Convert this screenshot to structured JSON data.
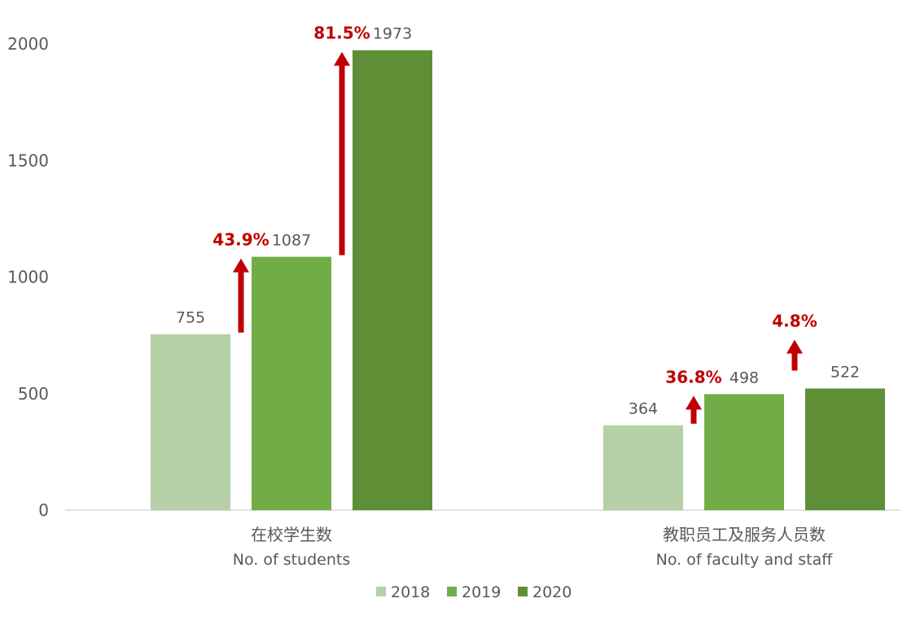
{
  "chart_data": {
    "type": "bar",
    "categories": [
      {
        "zh": "在校学生数",
        "en": "No. of students"
      },
      {
        "zh": "教职员工及服务人员数",
        "en": "No. of faculty and staff"
      }
    ],
    "series": [
      {
        "name": "2018",
        "color": "#b5d0a6",
        "values": [
          755,
          364
        ]
      },
      {
        "name": "2019",
        "color": "#71ad47",
        "values": [
          1087,
          498
        ]
      },
      {
        "name": "2020",
        "color": "#5e8f37",
        "values": [
          1973,
          522
        ]
      }
    ],
    "ylim": [
      0,
      2000
    ],
    "yticks": [
      0,
      500,
      1000,
      1500,
      2000
    ],
    "yticks_labels": [
      "0",
      "500",
      "1000",
      "1500",
      "2000"
    ],
    "growth_color": "#c00000",
    "growth": [
      {
        "category": 0,
        "from": 0,
        "to": 1,
        "label": "43.9%"
      },
      {
        "category": 0,
        "from": 1,
        "to": 2,
        "label": "81.5%"
      },
      {
        "category": 1,
        "from": 0,
        "to": 1,
        "label": "36.8%"
      },
      {
        "category": 1,
        "from": 1,
        "to": 2,
        "label": "4.8%"
      }
    ],
    "legend_position": "bottom",
    "grid": false
  }
}
